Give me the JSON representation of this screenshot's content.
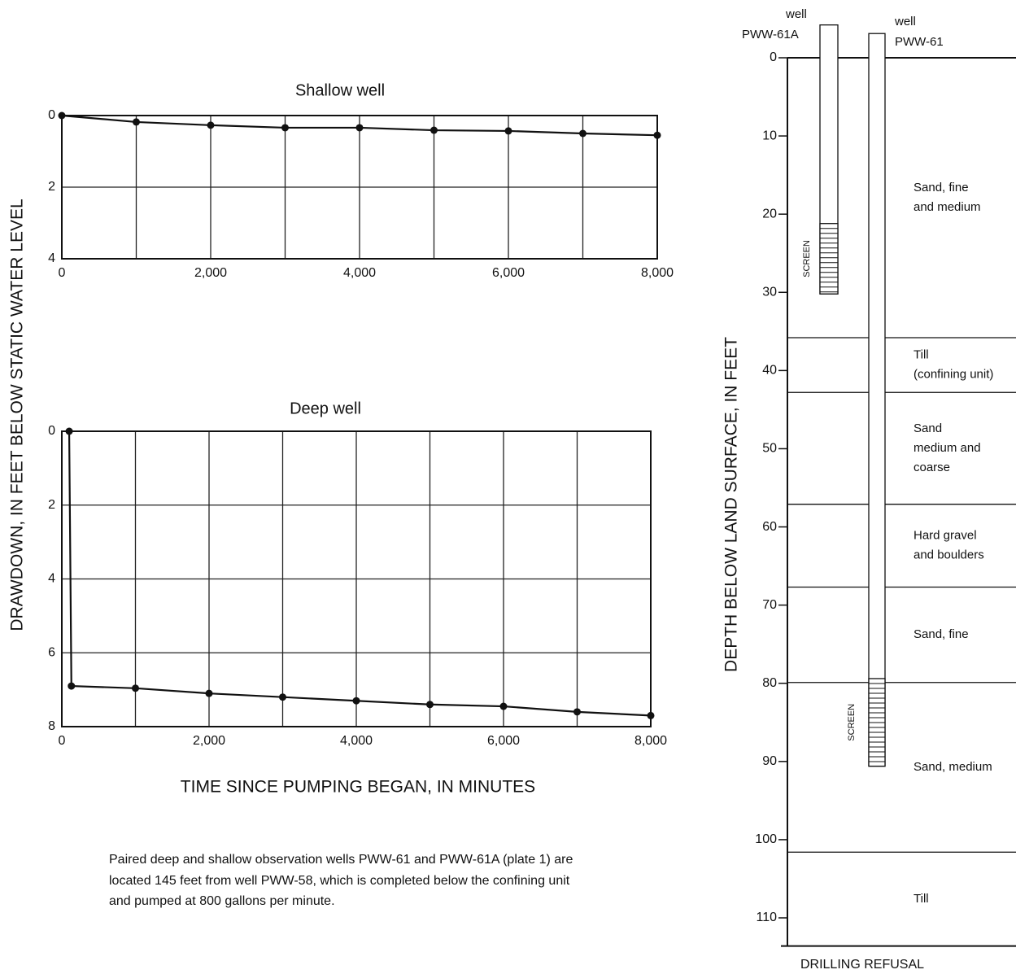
{
  "chart_data": [
    {
      "type": "line",
      "title": "Shallow well",
      "y_label": "DRAWDOWN, IN FEET BELOW STATIC WATER LEVEL",
      "x": [
        0,
        1000,
        2000,
        3000,
        4000,
        5000,
        6000,
        7000,
        8000
      ],
      "series": [
        {
          "color": "#111111",
          "values": [
            0,
            0.18,
            0.27,
            0.34,
            0.34,
            0.41,
            0.43,
            0.5,
            0.55
          ]
        }
      ],
      "xlim": [
        0,
        8000
      ],
      "ylim": [
        0,
        4
      ],
      "y_inverted": true,
      "xticks": [
        0,
        {
          "value": 2000,
          "label": "2,000"
        },
        {
          "value": 4000,
          "label": "4,000"
        },
        {
          "value": 6000,
          "label": "6,000"
        },
        {
          "value": 8000,
          "label": "8,000"
        }
      ],
      "xminor": [
        1000,
        3000,
        5000,
        7000
      ],
      "yticks": [
        0,
        2,
        4
      ],
      "grid": true
    },
    {
      "type": "line",
      "title": "Deep well",
      "x_label": "TIME SINCE PUMPING BEGAN, IN MINUTES",
      "x": [
        100,
        130,
        1000,
        2000,
        3000,
        4000,
        5000,
        6000,
        7000,
        8000
      ],
      "series": [
        {
          "color": "#111111",
          "values": [
            0,
            6.9,
            6.96,
            7.1,
            7.2,
            7.3,
            7.4,
            7.45,
            7.6,
            7.7
          ]
        }
      ],
      "xlim": [
        0,
        8000
      ],
      "ylim": [
        0,
        8
      ],
      "y_inverted": true,
      "xticks": [
        0,
        {
          "value": 2000,
          "label": "2,000"
        },
        {
          "value": 4000,
          "label": "4,000"
        },
        {
          "value": 6000,
          "label": "6,000"
        },
        {
          "value": 8000,
          "label": "8,000"
        }
      ],
      "xminor": [
        1000,
        3000,
        5000,
        7000
      ],
      "yticks": [
        0,
        2,
        4,
        6,
        8
      ],
      "grid": true
    },
    {
      "type": "well_log",
      "y_label": "DEPTH BELOW LAND SURFACE, IN FEET",
      "ylim": [
        0,
        110
      ],
      "y_inverted": true,
      "yticks": [
        0,
        10,
        20,
        30,
        40,
        50,
        60,
        70,
        80,
        90,
        100,
        110
      ],
      "layers": [
        {
          "label": [
            "Sand, fine",
            "and medium"
          ],
          "top": 0,
          "bottom": 35.8
        },
        {
          "label": [
            "Till",
            "(confining unit)"
          ],
          "top": 35.8,
          "bottom": 42.8
        },
        {
          "label": [
            "Sand",
            "medium and",
            "coarse"
          ],
          "top": 42.8,
          "bottom": 57.1
        },
        {
          "label": [
            "Hard gravel",
            "and boulders"
          ],
          "top": 57.1,
          "bottom": 67.7
        },
        {
          "label": [
            "Sand, fine"
          ],
          "top": 67.7,
          "bottom": 79.9
        },
        {
          "label": [
            "Sand, medium"
          ],
          "top": 79.9,
          "bottom": 101.6
        },
        {
          "label": [
            "Till"
          ],
          "top": 101.6,
          "bottom": 113.6
        }
      ],
      "wells": [
        {
          "label": [
            "well",
            "PWW-61A"
          ],
          "top": -4.2,
          "bottom": 30.2,
          "screen_top": 21.2,
          "screen_bottom": 30.2,
          "screen_label": "SCREEN"
        },
        {
          "label": [
            "well",
            "PWW-61"
          ],
          "top": -3.1,
          "bottom": 90.6,
          "screen_top": 79.4,
          "screen_bottom": 90.6,
          "screen_label": "SCREEN"
        }
      ],
      "bottom_label": "DRILLING REFUSAL"
    }
  ],
  "caption": [
    "Paired deep and shallow observation wells PWW-61 and PWW-61A (plate 1) are",
    "located 145 feet from well PWW-58, which is completed below the confining unit",
    "and pumped at 800 gallons per minute."
  ]
}
